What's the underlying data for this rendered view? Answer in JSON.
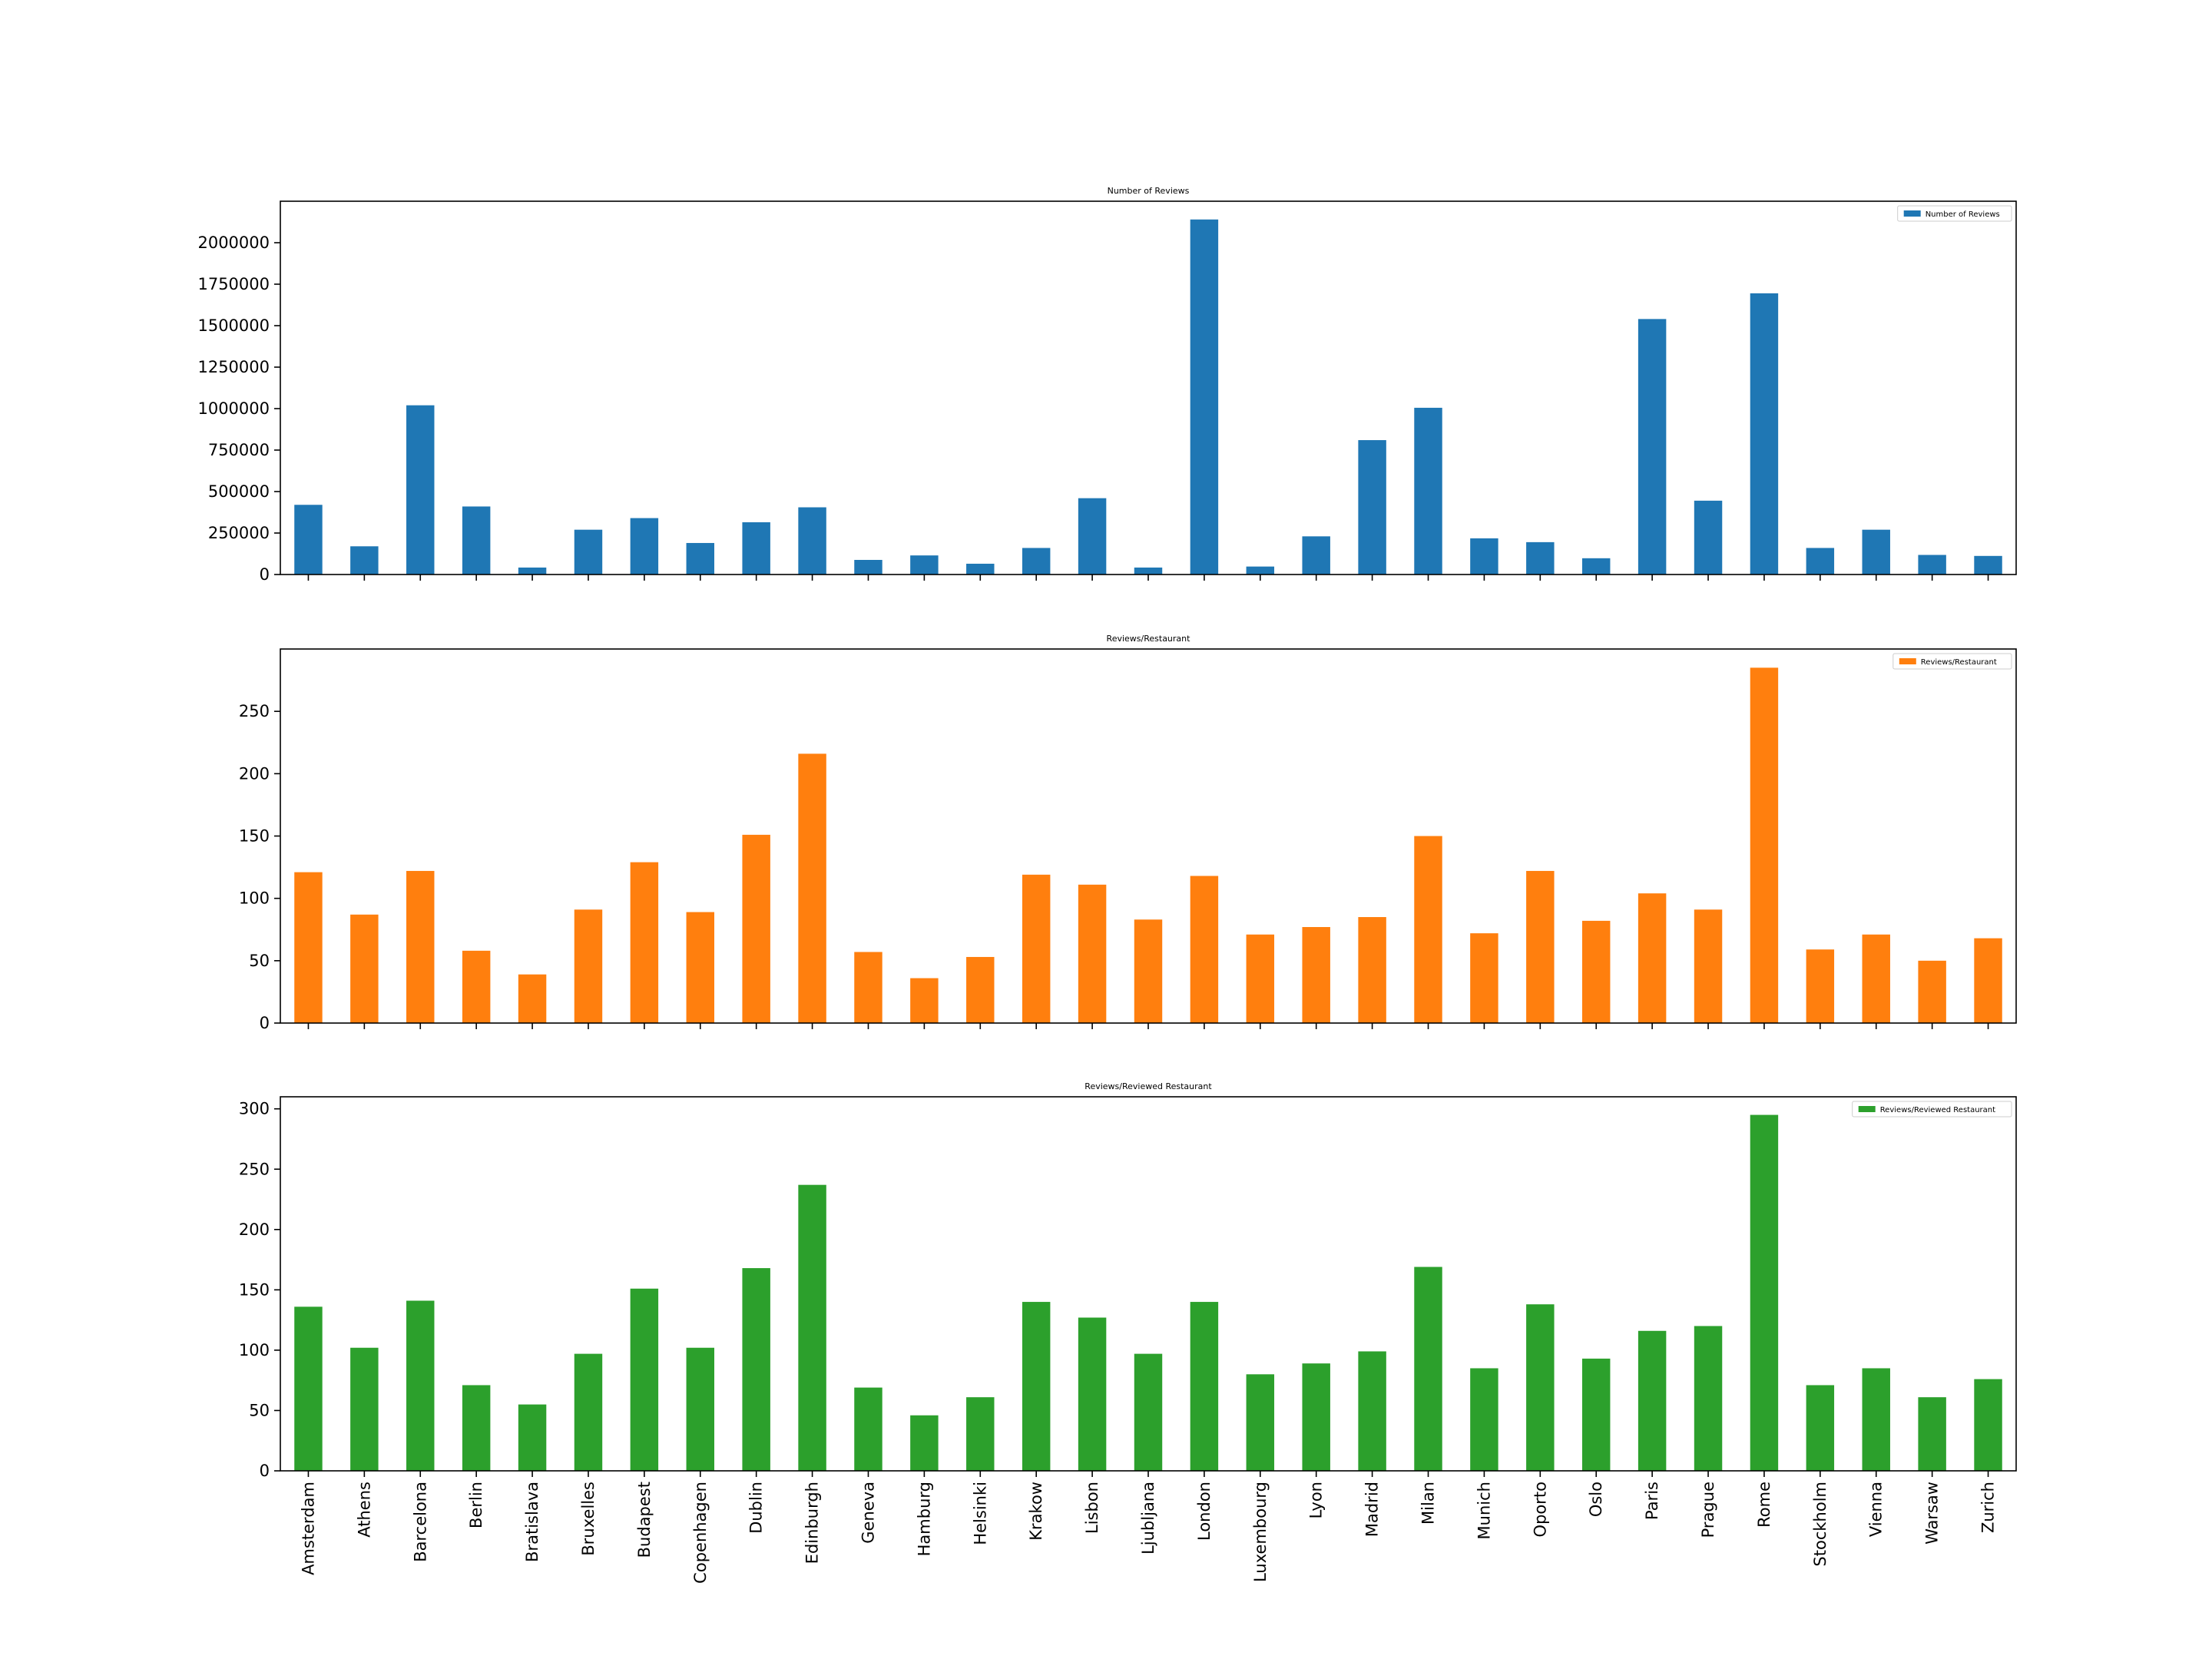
{
  "chart_data": [
    {
      "type": "bar",
      "title": "Number of Reviews",
      "legend": {
        "label": "Number of Reviews",
        "placement": "top-right"
      },
      "color": "#1f77b4",
      "xlabel": "",
      "ylabel": "",
      "ylim": [
        0,
        2250000
      ],
      "yticks": [
        0,
        250000,
        500000,
        750000,
        1000000,
        1250000,
        1500000,
        1750000,
        2000000
      ],
      "ytick_labels": [
        "0",
        "250000",
        "500000",
        "750000",
        "1000000",
        "1250000",
        "1500000",
        "1750000",
        "2000000"
      ],
      "categories": [
        "Amsterdam",
        "Athens",
        "Barcelona",
        "Berlin",
        "Bratislava",
        "Bruxelles",
        "Budapest",
        "Copenhagen",
        "Dublin",
        "Edinburgh",
        "Geneva",
        "Hamburg",
        "Helsinki",
        "Krakow",
        "Lisbon",
        "Ljubljana",
        "London",
        "Luxembourg",
        "Lyon",
        "Madrid",
        "Milan",
        "Munich",
        "Oporto",
        "Oslo",
        "Paris",
        "Prague",
        "Rome",
        "Stockholm",
        "Vienna",
        "Warsaw",
        "Zurich"
      ],
      "values": [
        420000,
        170000,
        1020000,
        410000,
        42000,
        270000,
        340000,
        190000,
        315000,
        405000,
        88000,
        115000,
        65000,
        160000,
        460000,
        42000,
        2140000,
        48000,
        230000,
        810000,
        1005000,
        218000,
        195000,
        98000,
        1540000,
        445000,
        1695000,
        160000,
        270000,
        118000,
        112000
      ]
    },
    {
      "type": "bar",
      "title": "Reviews/Restaurant",
      "legend": {
        "label": "Reviews/Restaurant",
        "placement": "top-right"
      },
      "color": "#ff7f0e",
      "xlabel": "",
      "ylabel": "",
      "ylim": [
        0,
        300
      ],
      "yticks": [
        0,
        50,
        100,
        150,
        200,
        250
      ],
      "ytick_labels": [
        "0",
        "50",
        "100",
        "150",
        "200",
        "250"
      ],
      "categories": [
        "Amsterdam",
        "Athens",
        "Barcelona",
        "Berlin",
        "Bratislava",
        "Bruxelles",
        "Budapest",
        "Copenhagen",
        "Dublin",
        "Edinburgh",
        "Geneva",
        "Hamburg",
        "Helsinki",
        "Krakow",
        "Lisbon",
        "Ljubljana",
        "London",
        "Luxembourg",
        "Lyon",
        "Madrid",
        "Milan",
        "Munich",
        "Oporto",
        "Oslo",
        "Paris",
        "Prague",
        "Rome",
        "Stockholm",
        "Vienna",
        "Warsaw",
        "Zurich"
      ],
      "values": [
        121,
        87,
        122,
        58,
        39,
        91,
        129,
        89,
        151,
        216,
        57,
        36,
        53,
        119,
        111,
        83,
        118,
        71,
        77,
        85,
        150,
        72,
        122,
        82,
        104,
        91,
        285,
        59,
        71,
        50,
        68
      ]
    },
    {
      "type": "bar",
      "title": "Reviews/Reviewed Restaurant",
      "legend": {
        "label": "Reviews/Reviewed Restaurant",
        "placement": "top-right"
      },
      "color": "#2ca02c",
      "xlabel": "",
      "ylabel": "",
      "ylim": [
        0,
        310
      ],
      "yticks": [
        0,
        50,
        100,
        150,
        200,
        250,
        300
      ],
      "ytick_labels": [
        "0",
        "50",
        "100",
        "150",
        "200",
        "250",
        "300"
      ],
      "categories": [
        "Amsterdam",
        "Athens",
        "Barcelona",
        "Berlin",
        "Bratislava",
        "Bruxelles",
        "Budapest",
        "Copenhagen",
        "Dublin",
        "Edinburgh",
        "Geneva",
        "Hamburg",
        "Helsinki",
        "Krakow",
        "Lisbon",
        "Ljubljana",
        "London",
        "Luxembourg",
        "Lyon",
        "Madrid",
        "Milan",
        "Munich",
        "Oporto",
        "Oslo",
        "Paris",
        "Prague",
        "Rome",
        "Stockholm",
        "Vienna",
        "Warsaw",
        "Zurich"
      ],
      "values": [
        136,
        102,
        141,
        71,
        55,
        97,
        151,
        102,
        168,
        237,
        69,
        46,
        61,
        140,
        127,
        97,
        140,
        80,
        89,
        99,
        169,
        85,
        138,
        93,
        116,
        120,
        295,
        71,
        85,
        61,
        76
      ]
    }
  ]
}
